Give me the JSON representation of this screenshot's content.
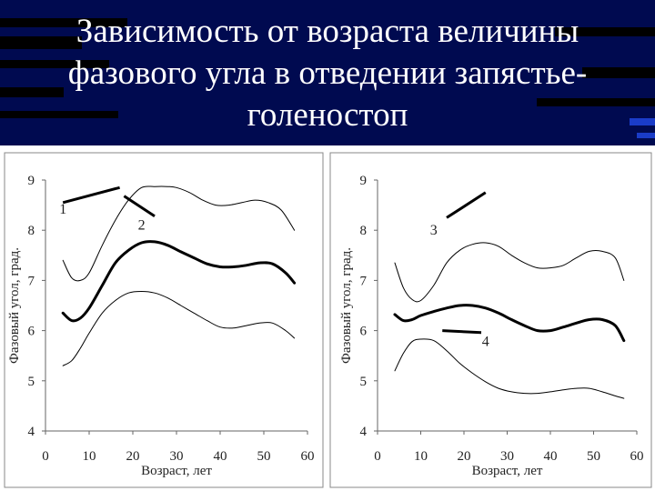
{
  "title": {
    "lines": [
      "Зависимость от возраста величины",
      "фазового угла в отведении запястье-",
      "голеностоп"
    ]
  },
  "colors": {
    "background": "#000a50",
    "stripe": "#000000",
    "accent": "#1a3cc8",
    "line": "#000000"
  },
  "chart_data": [
    {
      "type": "line",
      "xlabel": "Возраст, лет",
      "ylabel": "Фазовый угол, град.",
      "xlim": [
        0,
        60
      ],
      "ylim": [
        4,
        9
      ],
      "xticks": [
        "0",
        "10",
        "20",
        "30",
        "40",
        "50",
        "60"
      ],
      "yticks": [
        "4",
        "5",
        "6",
        "7",
        "8",
        "9"
      ],
      "series": [
        {
          "style": "thin",
          "x": [
            4,
            6,
            8,
            10,
            13,
            16,
            19,
            22,
            25,
            28,
            30,
            33,
            36,
            39,
            42,
            45,
            48,
            51,
            54,
            57
          ],
          "y": [
            7.4,
            7.05,
            7.0,
            7.15,
            7.7,
            8.2,
            8.6,
            8.85,
            8.87,
            8.87,
            8.85,
            8.75,
            8.6,
            8.5,
            8.5,
            8.55,
            8.6,
            8.55,
            8.4,
            8.0
          ]
        },
        {
          "style": "thick",
          "x": [
            4,
            6,
            8,
            10,
            13,
            16,
            19,
            22,
            25,
            28,
            31,
            34,
            37,
            40,
            43,
            46,
            49,
            52,
            55,
            57
          ],
          "y": [
            6.35,
            6.2,
            6.25,
            6.45,
            6.9,
            7.35,
            7.6,
            7.75,
            7.77,
            7.7,
            7.57,
            7.45,
            7.33,
            7.27,
            7.27,
            7.3,
            7.35,
            7.33,
            7.15,
            6.95
          ]
        },
        {
          "style": "thin",
          "x": [
            4,
            6,
            8,
            10,
            13,
            16,
            19,
            22,
            25,
            28,
            31,
            34,
            37,
            40,
            43,
            46,
            49,
            52,
            55,
            57
          ],
          "y": [
            5.3,
            5.4,
            5.65,
            5.95,
            6.35,
            6.6,
            6.75,
            6.78,
            6.75,
            6.65,
            6.5,
            6.35,
            6.2,
            6.07,
            6.05,
            6.1,
            6.15,
            6.15,
            6.0,
            5.85
          ]
        }
      ],
      "annotations": [
        {
          "text": "1",
          "x": 4,
          "y": 8.42,
          "line": [
            [
              4,
              8.55
            ],
            [
              17,
              8.85
            ]
          ]
        },
        {
          "text": "2",
          "x": 22,
          "y": 8.1,
          "line": [
            [
              18,
              8.68
            ],
            [
              25,
              8.28
            ]
          ]
        }
      ]
    },
    {
      "type": "line",
      "xlabel": "Возраст, лет",
      "ylabel": "Фазовый угол, град.",
      "xlim": [
        0,
        60
      ],
      "ylim": [
        4,
        9
      ],
      "xticks": [
        "0",
        "10",
        "20",
        "30",
        "40",
        "50",
        "60"
      ],
      "yticks": [
        "4",
        "5",
        "6",
        "7",
        "8",
        "9"
      ],
      "series": [
        {
          "style": "thin",
          "x": [
            4,
            6,
            8,
            10,
            13,
            16,
            19,
            22,
            25,
            28,
            31,
            34,
            37,
            40,
            43,
            46,
            49,
            52,
            55,
            57
          ],
          "y": [
            7.35,
            6.85,
            6.62,
            6.6,
            6.9,
            7.35,
            7.6,
            7.72,
            7.75,
            7.68,
            7.5,
            7.35,
            7.25,
            7.25,
            7.3,
            7.45,
            7.58,
            7.58,
            7.45,
            7.0
          ]
        },
        {
          "style": "thick",
          "x": [
            4,
            6,
            8,
            10,
            13,
            16,
            19,
            22,
            25,
            28,
            31,
            34,
            37,
            40,
            43,
            46,
            49,
            52,
            55,
            57
          ],
          "y": [
            6.32,
            6.2,
            6.22,
            6.3,
            6.38,
            6.45,
            6.5,
            6.5,
            6.45,
            6.35,
            6.22,
            6.1,
            6.0,
            6.0,
            6.07,
            6.15,
            6.22,
            6.22,
            6.1,
            5.8
          ]
        },
        {
          "style": "thin",
          "x": [
            4,
            6,
            8,
            10,
            13,
            16,
            19,
            22,
            25,
            28,
            31,
            34,
            37,
            40,
            43,
            46,
            49,
            52,
            55,
            57
          ],
          "y": [
            5.2,
            5.55,
            5.78,
            5.83,
            5.8,
            5.6,
            5.35,
            5.15,
            4.98,
            4.85,
            4.78,
            4.75,
            4.75,
            4.78,
            4.82,
            4.85,
            4.85,
            4.78,
            4.7,
            4.65
          ]
        }
      ],
      "annotations": [
        {
          "text": "3",
          "x": 13,
          "y": 8.0,
          "line": [
            [
              16,
              8.25
            ],
            [
              25,
              8.75
            ]
          ]
        },
        {
          "text": "4",
          "x": 25,
          "y": 5.78,
          "line": [
            [
              15,
              6.0
            ],
            [
              24,
              5.96
            ]
          ]
        }
      ]
    }
  ]
}
